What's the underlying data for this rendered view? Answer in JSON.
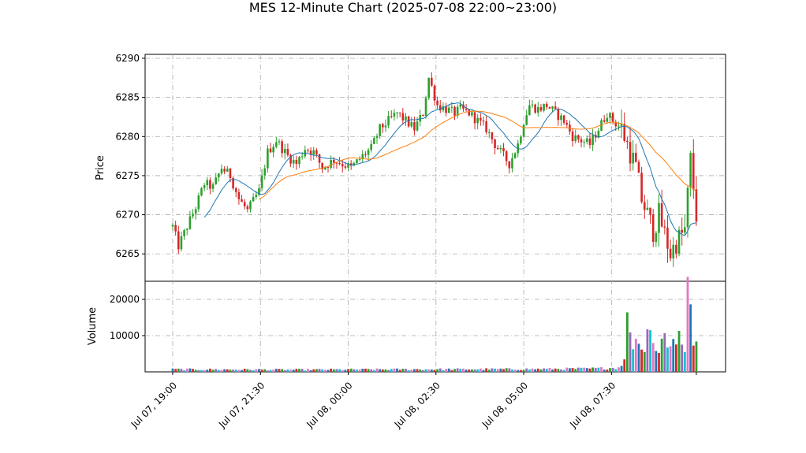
{
  "chart_data": {
    "type": "candlestick",
    "title": "MES 12-Minute Chart (2025-07-08 22:00~23:00)",
    "price_panel": {
      "ylabel": "Price",
      "ylim": [
        6261.5,
        6290.5
      ],
      "yticks": [
        6265,
        6270,
        6275,
        6280,
        6285,
        6290
      ]
    },
    "volume_panel": {
      "ylabel": "Volume",
      "ylim": [
        0,
        25000
      ],
      "yticks": [
        10000,
        20000
      ]
    },
    "x_ticks": [
      "Jul 07, 19:00",
      "Jul 07, 21:30",
      "Jul 08, 00:00",
      "Jul 08, 02:30",
      "Jul 08, 05:00",
      "Jul 08, 07:30"
    ],
    "grid": true,
    "colors": {
      "up": "#2ca02c",
      "down": "#d62728",
      "ma_short": "#1f77b4",
      "ma_long": "#ff7f0e",
      "grid": "#aaaaaa"
    },
    "price_path": [
      [
        0,
        6268.5
      ],
      [
        2,
        6266
      ],
      [
        5,
        6268.5
      ],
      [
        8,
        6271
      ],
      [
        11,
        6274
      ],
      [
        14,
        6273.5
      ],
      [
        17,
        6276
      ],
      [
        20,
        6275
      ],
      [
        23,
        6272
      ],
      [
        26,
        6270.5
      ],
      [
        30,
        6273
      ],
      [
        33,
        6278
      ],
      [
        36,
        6279.5
      ],
      [
        40,
        6277.5
      ],
      [
        43,
        6276.5
      ],
      [
        46,
        6278.5
      ],
      [
        49,
        6278
      ],
      [
        52,
        6276
      ],
      [
        56,
        6277
      ],
      [
        59,
        6276.5
      ],
      [
        62,
        6276
      ],
      [
        66,
        6277.5
      ],
      [
        69,
        6278.5
      ],
      [
        72,
        6281
      ],
      [
        75,
        6282
      ],
      [
        78,
        6283
      ],
      [
        81,
        6282
      ],
      [
        84,
        6281
      ],
      [
        87,
        6283
      ],
      [
        89,
        6287.5
      ],
      [
        92,
        6284
      ],
      [
        95,
        6283.5
      ],
      [
        98,
        6283
      ],
      [
        100,
        6283.5
      ],
      [
        103,
        6283
      ],
      [
        106,
        6282
      ],
      [
        109,
        6281
      ],
      [
        112,
        6279
      ],
      [
        115,
        6277.5
      ],
      [
        117,
        6276.5
      ],
      [
        120,
        6279
      ],
      [
        122,
        6282
      ],
      [
        124,
        6284
      ],
      [
        127,
        6283.5
      ],
      [
        130,
        6284
      ],
      [
        133,
        6283
      ],
      [
        136,
        6282
      ],
      [
        139,
        6280
      ],
      [
        142,
        6279.5
      ],
      [
        145,
        6279
      ],
      [
        148,
        6281
      ],
      [
        151,
        6283
      ],
      [
        153,
        6282
      ],
      [
        156,
        6281
      ],
      [
        159,
        6278
      ],
      [
        161,
        6276
      ],
      [
        163,
        6272
      ],
      [
        165,
        6270
      ],
      [
        167,
        6268
      ],
      [
        169,
        6270
      ],
      [
        171,
        6267.5
      ],
      [
        173,
        6265
      ],
      [
        175,
        6266.5
      ],
      [
        178,
        6268
      ],
      [
        180,
        6277
      ],
      [
        182,
        6270
      ]
    ],
    "volume_base": [
      [
        0,
        700
      ],
      [
        40,
        600
      ],
      [
        80,
        700
      ],
      [
        120,
        750
      ],
      [
        145,
        900
      ],
      [
        150,
        1000
      ],
      [
        155,
        1200
      ],
      [
        157,
        3000
      ],
      [
        158,
        14000
      ],
      [
        160,
        7500
      ],
      [
        162,
        9000
      ],
      [
        164,
        5000
      ],
      [
        165,
        14000
      ],
      [
        167,
        8000
      ],
      [
        169,
        5000
      ],
      [
        170,
        11000
      ],
      [
        172,
        6500
      ],
      [
        174,
        7500
      ],
      [
        176,
        9500
      ],
      [
        178,
        7000
      ],
      [
        179,
        23000
      ],
      [
        180,
        17000
      ],
      [
        181,
        9000
      ],
      [
        182,
        8000
      ]
    ]
  }
}
